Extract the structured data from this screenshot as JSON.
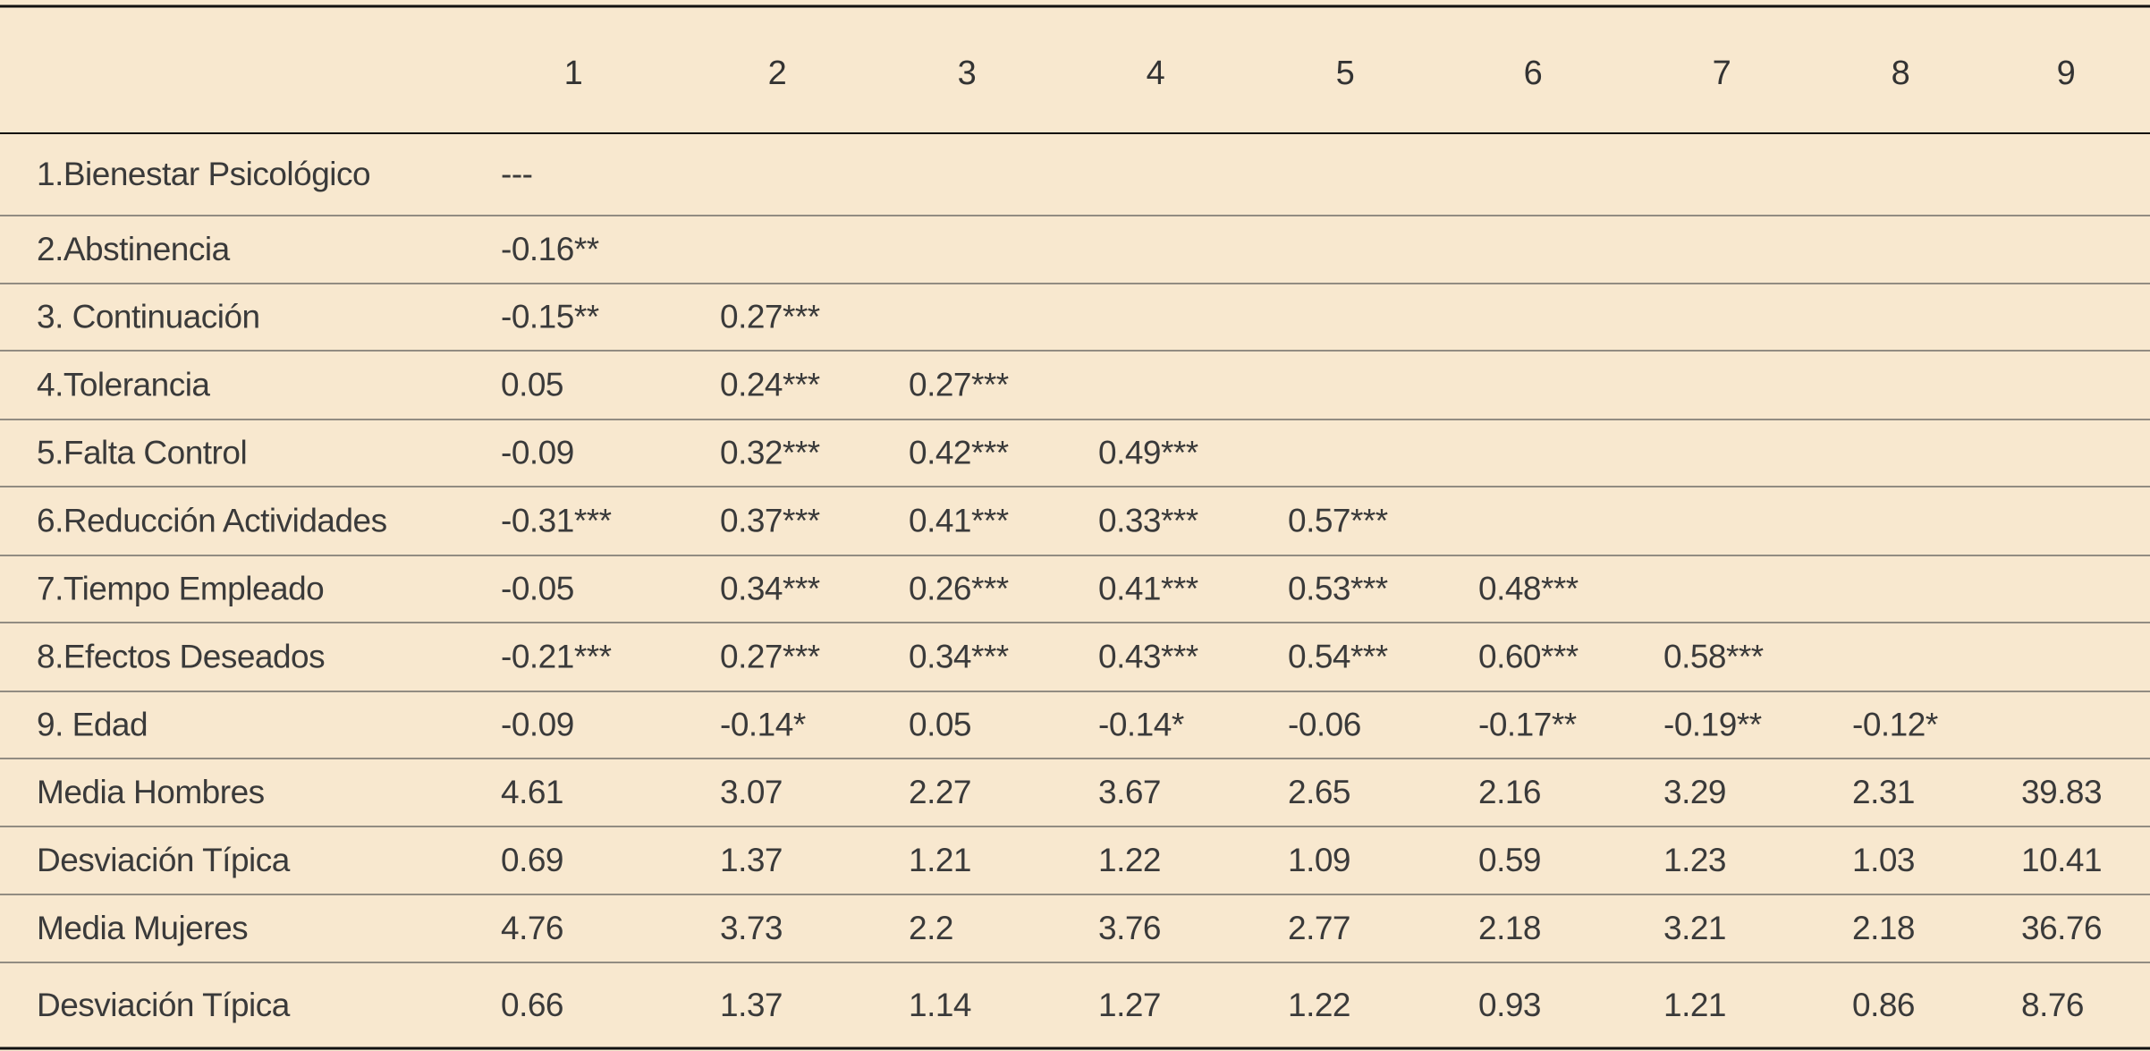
{
  "table": {
    "header": [
      "1",
      "2",
      "3",
      "4",
      "5",
      "6",
      "7",
      "8",
      "9"
    ],
    "rows": [
      {
        "label": "1.Bienestar Psicológico",
        "cells": [
          "---"
        ]
      },
      {
        "label": "2.Abstinencia",
        "cells": [
          "-0.16**"
        ]
      },
      {
        "label": "3. Continuación",
        "cells": [
          "-0.15**",
          "0.27***"
        ]
      },
      {
        "label": "4.Tolerancia",
        "cells": [
          "0.05",
          "0.24***",
          "0.27***"
        ]
      },
      {
        "label": "5.Falta Control",
        "cells": [
          "-0.09",
          "0.32***",
          "0.42***",
          "0.49***"
        ]
      },
      {
        "label": "6.Reducción Actividades",
        "cells": [
          "-0.31***",
          "0.37***",
          "0.41***",
          "0.33***",
          "0.57***"
        ]
      },
      {
        "label": "7.Tiempo Empleado",
        "cells": [
          "-0.05",
          "0.34***",
          "0.26***",
          "0.41***",
          "0.53***",
          "0.48***"
        ]
      },
      {
        "label": "8.Efectos Deseados",
        "cells": [
          "-0.21***",
          "0.27***",
          "0.34***",
          "0.43***",
          "0.54***",
          "0.60***",
          "0.58***"
        ]
      },
      {
        "label": "9. Edad",
        "cells": [
          "-0.09",
          "-0.14*",
          "0.05",
          "-0.14*",
          "-0.06",
          "-0.17**",
          "-0.19**",
          "-0.12*"
        ]
      },
      {
        "label": "Media Hombres",
        "cells": [
          "4.61",
          "3.07",
          "2.27",
          "3.67",
          "2.65",
          "2.16",
          "3.29",
          "2.31",
          "39.83"
        ]
      },
      {
        "label": "Desviación Típica",
        "cells": [
          "0.69",
          "1.37",
          "1.21",
          "1.22",
          "1.09",
          "0.59",
          "1.23",
          "1.03",
          "10.41"
        ]
      },
      {
        "label": "Media Mujeres",
        "cells": [
          "4.76",
          "3.73",
          "2.2",
          "3.76",
          "2.77",
          "2.18",
          "3.21",
          "2.18",
          "36.76"
        ]
      },
      {
        "label": "Desviación Típica",
        "cells": [
          "0.66",
          "1.37",
          "1.14",
          "1.27",
          "1.22",
          "0.93",
          "1.21",
          "0.86",
          "8.76"
        ]
      }
    ]
  }
}
